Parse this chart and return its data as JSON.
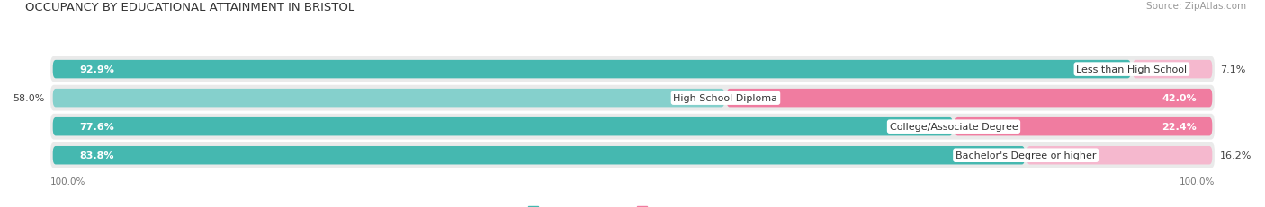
{
  "title": "OCCUPANCY BY EDUCATIONAL ATTAINMENT IN BRISTOL",
  "source": "Source: ZipAtlas.com",
  "categories": [
    "Less than High School",
    "High School Diploma",
    "College/Associate Degree",
    "Bachelor's Degree or higher"
  ],
  "owner_values": [
    92.9,
    58.0,
    77.6,
    83.8
  ],
  "renter_values": [
    7.1,
    42.0,
    22.4,
    16.2
  ],
  "owner_color": "#45b8b0",
  "owner_color_light": "#85d0cc",
  "renter_color": "#f07ca0",
  "renter_color_light": "#f5b8ce",
  "row_bg_color": "#eaeaea",
  "background_color": "#ffffff",
  "title_fontsize": 9.5,
  "label_fontsize": 8,
  "value_fontsize": 8,
  "tick_fontsize": 7.5,
  "source_fontsize": 7.5,
  "legend_fontsize": 8
}
